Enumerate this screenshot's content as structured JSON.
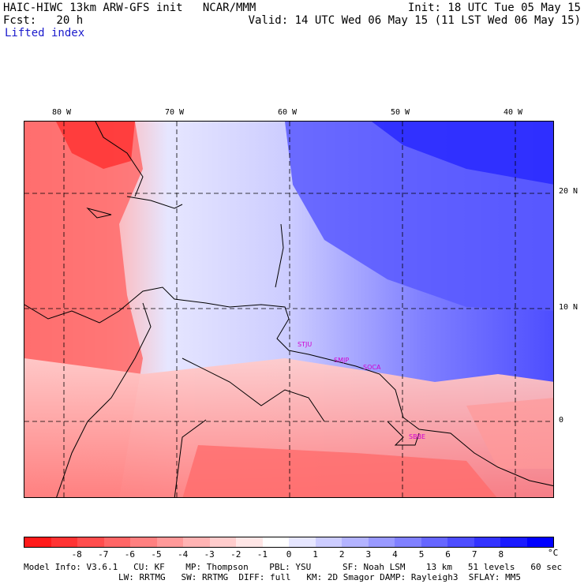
{
  "header": {
    "line1_left": "HAIC-HIWC 13km ARW-GFS init   NCAR/MMM",
    "line1_right": "Init: 18 UTC Tue 05 May 15",
    "line2_left": "Fcst:   20 h",
    "line2_right": "Valid: 14 UTC Wed 06 May 15 (11 LST Wed 06 May 15)",
    "field": "Lifted index"
  },
  "map": {
    "lon_labels": [
      "80 W",
      "70 W",
      "60 W",
      "50 W",
      "40 W"
    ],
    "lat_labels": [
      "20 N",
      "10 N",
      "0"
    ],
    "stations": [
      "STJU",
      "SMJP",
      "SOCA",
      "SBBE"
    ]
  },
  "colorbar": {
    "labels": [
      "-8",
      "-7",
      "-6",
      "-5",
      "-4",
      "-3",
      "-2",
      "-1",
      "0",
      "1",
      "2",
      "3",
      "4",
      "5",
      "6",
      "7",
      "8"
    ],
    "unit": "°C",
    "colors": [
      "#ff1a1a",
      "#ff3333",
      "#ff4d4d",
      "#ff6666",
      "#ff8080",
      "#ff9999",
      "#ffb3b3",
      "#ffcccc",
      "#ffe6e6",
      "#ffffff",
      "#e6e6ff",
      "#ccccff",
      "#b3b3ff",
      "#9999ff",
      "#8080ff",
      "#6666ff",
      "#4d4dff",
      "#3333ff",
      "#1a1aff",
      "#0000ff"
    ]
  },
  "footer": {
    "line1": "Model Info: V3.6.1   CU: KF    MP: Thompson    PBL: YSU      SF: Noah LSM    13 km   51 levels   60 sec",
    "line2": "LW: RRTMG   SW: RRTMG  DIFF: full   KM: 2D Smagor DAMP: Rayleigh3  SFLAY: MM5"
  }
}
